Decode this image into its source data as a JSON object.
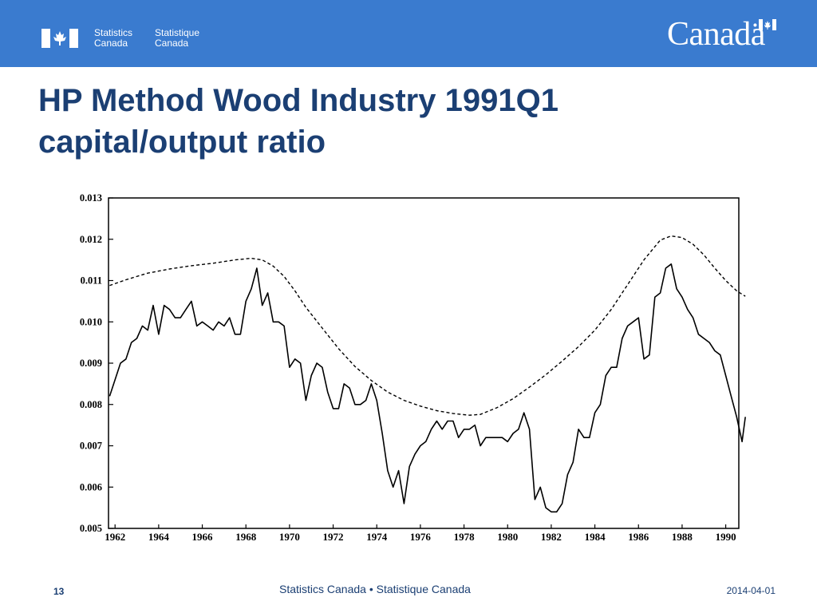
{
  "header": {
    "org_en_line1": "Statistics",
    "org_en_line2": "Canada",
    "org_fr_line1": "Statistique",
    "org_fr_line2": "Canada",
    "wordmark": "Canadä",
    "brand_color": "#3a7bcf"
  },
  "slide": {
    "title_line1": "HP Method Wood Industry 1991Q1",
    "title_line2": "capital/output ratio"
  },
  "footer": {
    "page_number": "13",
    "center_text": "Statistics Canada • Statistique Canada",
    "date": "2014-04-01"
  },
  "chart_data": {
    "type": "line",
    "title": "",
    "xlabel": "",
    "ylabel": "",
    "xlim": [
      1961.7,
      1990.6
    ],
    "ylim": [
      0.005,
      0.013
    ],
    "yticks": [
      "0.005",
      "0.006",
      "0.007",
      "0.008",
      "0.009",
      "0.010",
      "0.011",
      "0.012",
      "0.013"
    ],
    "xticks": [
      "1962",
      "1964",
      "1966",
      "1968",
      "1970",
      "1972",
      "1974",
      "1976",
      "1978",
      "1980",
      "1982",
      "1984",
      "1986",
      "1988",
      "1990"
    ],
    "grid": false,
    "legend": "none",
    "series": [
      {
        "style": "solid",
        "points": [
          [
            1961.75,
            0.0082
          ],
          [
            1962.0,
            0.0086
          ],
          [
            1962.25,
            0.009
          ],
          [
            1962.5,
            0.0091
          ],
          [
            1962.75,
            0.0095
          ],
          [
            1963.0,
            0.0096
          ],
          [
            1963.25,
            0.0099
          ],
          [
            1963.5,
            0.0098
          ],
          [
            1963.75,
            0.0104
          ],
          [
            1964.0,
            0.0097
          ],
          [
            1964.25,
            0.0104
          ],
          [
            1964.5,
            0.0103
          ],
          [
            1964.75,
            0.0101
          ],
          [
            1965.0,
            0.0101
          ],
          [
            1965.25,
            0.0103
          ],
          [
            1965.5,
            0.0105
          ],
          [
            1965.75,
            0.0099
          ],
          [
            1966.0,
            0.01
          ],
          [
            1966.25,
            0.0099
          ],
          [
            1966.5,
            0.0098
          ],
          [
            1966.75,
            0.01
          ],
          [
            1967.0,
            0.0099
          ],
          [
            1967.25,
            0.0101
          ],
          [
            1967.5,
            0.0097
          ],
          [
            1967.75,
            0.0097
          ],
          [
            1968.0,
            0.0105
          ],
          [
            1968.25,
            0.0108
          ],
          [
            1968.5,
            0.0113
          ],
          [
            1968.75,
            0.0104
          ],
          [
            1969.0,
            0.0107
          ],
          [
            1969.25,
            0.01
          ],
          [
            1969.5,
            0.01
          ],
          [
            1969.75,
            0.0099
          ],
          [
            1970.0,
            0.0089
          ],
          [
            1970.25,
            0.0091
          ],
          [
            1970.5,
            0.009
          ],
          [
            1970.75,
            0.0081
          ],
          [
            1971.0,
            0.0087
          ],
          [
            1971.25,
            0.009
          ],
          [
            1971.5,
            0.0089
          ],
          [
            1971.75,
            0.0083
          ],
          [
            1972.0,
            0.0079
          ],
          [
            1972.25,
            0.0079
          ],
          [
            1972.5,
            0.0085
          ],
          [
            1972.75,
            0.0084
          ],
          [
            1973.0,
            0.008
          ],
          [
            1973.25,
            0.008
          ],
          [
            1973.5,
            0.0081
          ],
          [
            1973.75,
            0.0085
          ],
          [
            1974.0,
            0.0081
          ],
          [
            1974.25,
            0.0073
          ],
          [
            1974.5,
            0.0064
          ],
          [
            1974.75,
            0.006
          ],
          [
            1975.0,
            0.0064
          ],
          [
            1975.25,
            0.0056
          ],
          [
            1975.5,
            0.0065
          ],
          [
            1975.75,
            0.0068
          ],
          [
            1976.0,
            0.007
          ],
          [
            1976.25,
            0.0071
          ],
          [
            1976.5,
            0.0074
          ],
          [
            1976.75,
            0.0076
          ],
          [
            1977.0,
            0.0074
          ],
          [
            1977.25,
            0.0076
          ],
          [
            1977.5,
            0.0076
          ],
          [
            1977.75,
            0.0072
          ],
          [
            1978.0,
            0.0074
          ],
          [
            1978.25,
            0.0074
          ],
          [
            1978.5,
            0.0075
          ],
          [
            1978.75,
            0.007
          ],
          [
            1979.0,
            0.0072
          ],
          [
            1979.25,
            0.0072
          ],
          [
            1979.5,
            0.0072
          ],
          [
            1979.75,
            0.0072
          ],
          [
            1980.0,
            0.0071
          ],
          [
            1980.25,
            0.0073
          ],
          [
            1980.5,
            0.0074
          ],
          [
            1980.75,
            0.0078
          ],
          [
            1981.0,
            0.0074
          ],
          [
            1981.25,
            0.0057
          ],
          [
            1981.5,
            0.006
          ],
          [
            1981.75,
            0.0055
          ],
          [
            1982.0,
            0.0054
          ],
          [
            1982.25,
            0.0054
          ],
          [
            1982.5,
            0.0056
          ],
          [
            1982.75,
            0.0063
          ],
          [
            1983.0,
            0.0066
          ],
          [
            1983.25,
            0.0074
          ],
          [
            1983.5,
            0.0072
          ],
          [
            1983.75,
            0.0072
          ],
          [
            1984.0,
            0.0078
          ],
          [
            1984.25,
            0.008
          ],
          [
            1984.5,
            0.0087
          ],
          [
            1984.75,
            0.0089
          ],
          [
            1985.0,
            0.0089
          ],
          [
            1985.25,
            0.0096
          ],
          [
            1985.5,
            0.0099
          ],
          [
            1985.75,
            0.01
          ],
          [
            1986.0,
            0.0101
          ],
          [
            1986.25,
            0.0091
          ],
          [
            1986.5,
            0.0092
          ],
          [
            1986.75,
            0.0106
          ],
          [
            1987.0,
            0.0107
          ],
          [
            1987.25,
            0.0113
          ],
          [
            1987.5,
            0.0114
          ],
          [
            1987.75,
            0.0108
          ],
          [
            1988.0,
            0.0106
          ],
          [
            1988.25,
            0.0103
          ],
          [
            1988.5,
            0.0101
          ],
          [
            1988.75,
            0.0097
          ],
          [
            1989.0,
            0.0096
          ],
          [
            1989.25,
            0.0095
          ],
          [
            1989.5,
            0.0093
          ],
          [
            1989.75,
            0.0092
          ],
          [
            1990.0,
            0.0087
          ],
          [
            1990.25,
            0.0082
          ],
          [
            1990.5,
            0.0077
          ],
          [
            1990.75,
            0.0071
          ],
          [
            1990.9,
            0.0077
          ]
        ]
      },
      {
        "style": "dashed",
        "points": [
          [
            1961.75,
            0.01088
          ],
          [
            1962.5,
            0.01102
          ],
          [
            1963.5,
            0.01118
          ],
          [
            1964.5,
            0.01128
          ],
          [
            1965.5,
            0.01136
          ],
          [
            1966.5,
            0.01142
          ],
          [
            1967.5,
            0.0115
          ],
          [
            1968.25,
            0.01154
          ],
          [
            1968.75,
            0.0115
          ],
          [
            1969.25,
            0.01135
          ],
          [
            1969.75,
            0.0111
          ],
          [
            1970.25,
            0.01075
          ],
          [
            1970.75,
            0.01035
          ],
          [
            1971.5,
            0.00985
          ],
          [
            1972.25,
            0.00935
          ],
          [
            1973.0,
            0.00892
          ],
          [
            1973.75,
            0.00858
          ],
          [
            1974.5,
            0.0083
          ],
          [
            1975.25,
            0.0081
          ],
          [
            1976.0,
            0.00796
          ],
          [
            1976.75,
            0.00785
          ],
          [
            1977.5,
            0.00778
          ],
          [
            1978.25,
            0.00774
          ],
          [
            1978.75,
            0.00776
          ],
          [
            1979.5,
            0.00792
          ],
          [
            1980.25,
            0.00814
          ],
          [
            1981.0,
            0.00842
          ],
          [
            1981.75,
            0.00872
          ],
          [
            1982.5,
            0.00905
          ],
          [
            1983.25,
            0.0094
          ],
          [
            1984.0,
            0.0098
          ],
          [
            1984.75,
            0.0103
          ],
          [
            1985.5,
            0.0109
          ],
          [
            1986.25,
            0.0115
          ],
          [
            1987.0,
            0.01198
          ],
          [
            1987.5,
            0.01208
          ],
          [
            1988.0,
            0.01204
          ],
          [
            1988.5,
            0.01188
          ],
          [
            1989.0,
            0.01162
          ],
          [
            1989.5,
            0.0113
          ],
          [
            1990.0,
            0.011
          ],
          [
            1990.5,
            0.01075
          ],
          [
            1990.9,
            0.01062
          ]
        ]
      }
    ]
  }
}
